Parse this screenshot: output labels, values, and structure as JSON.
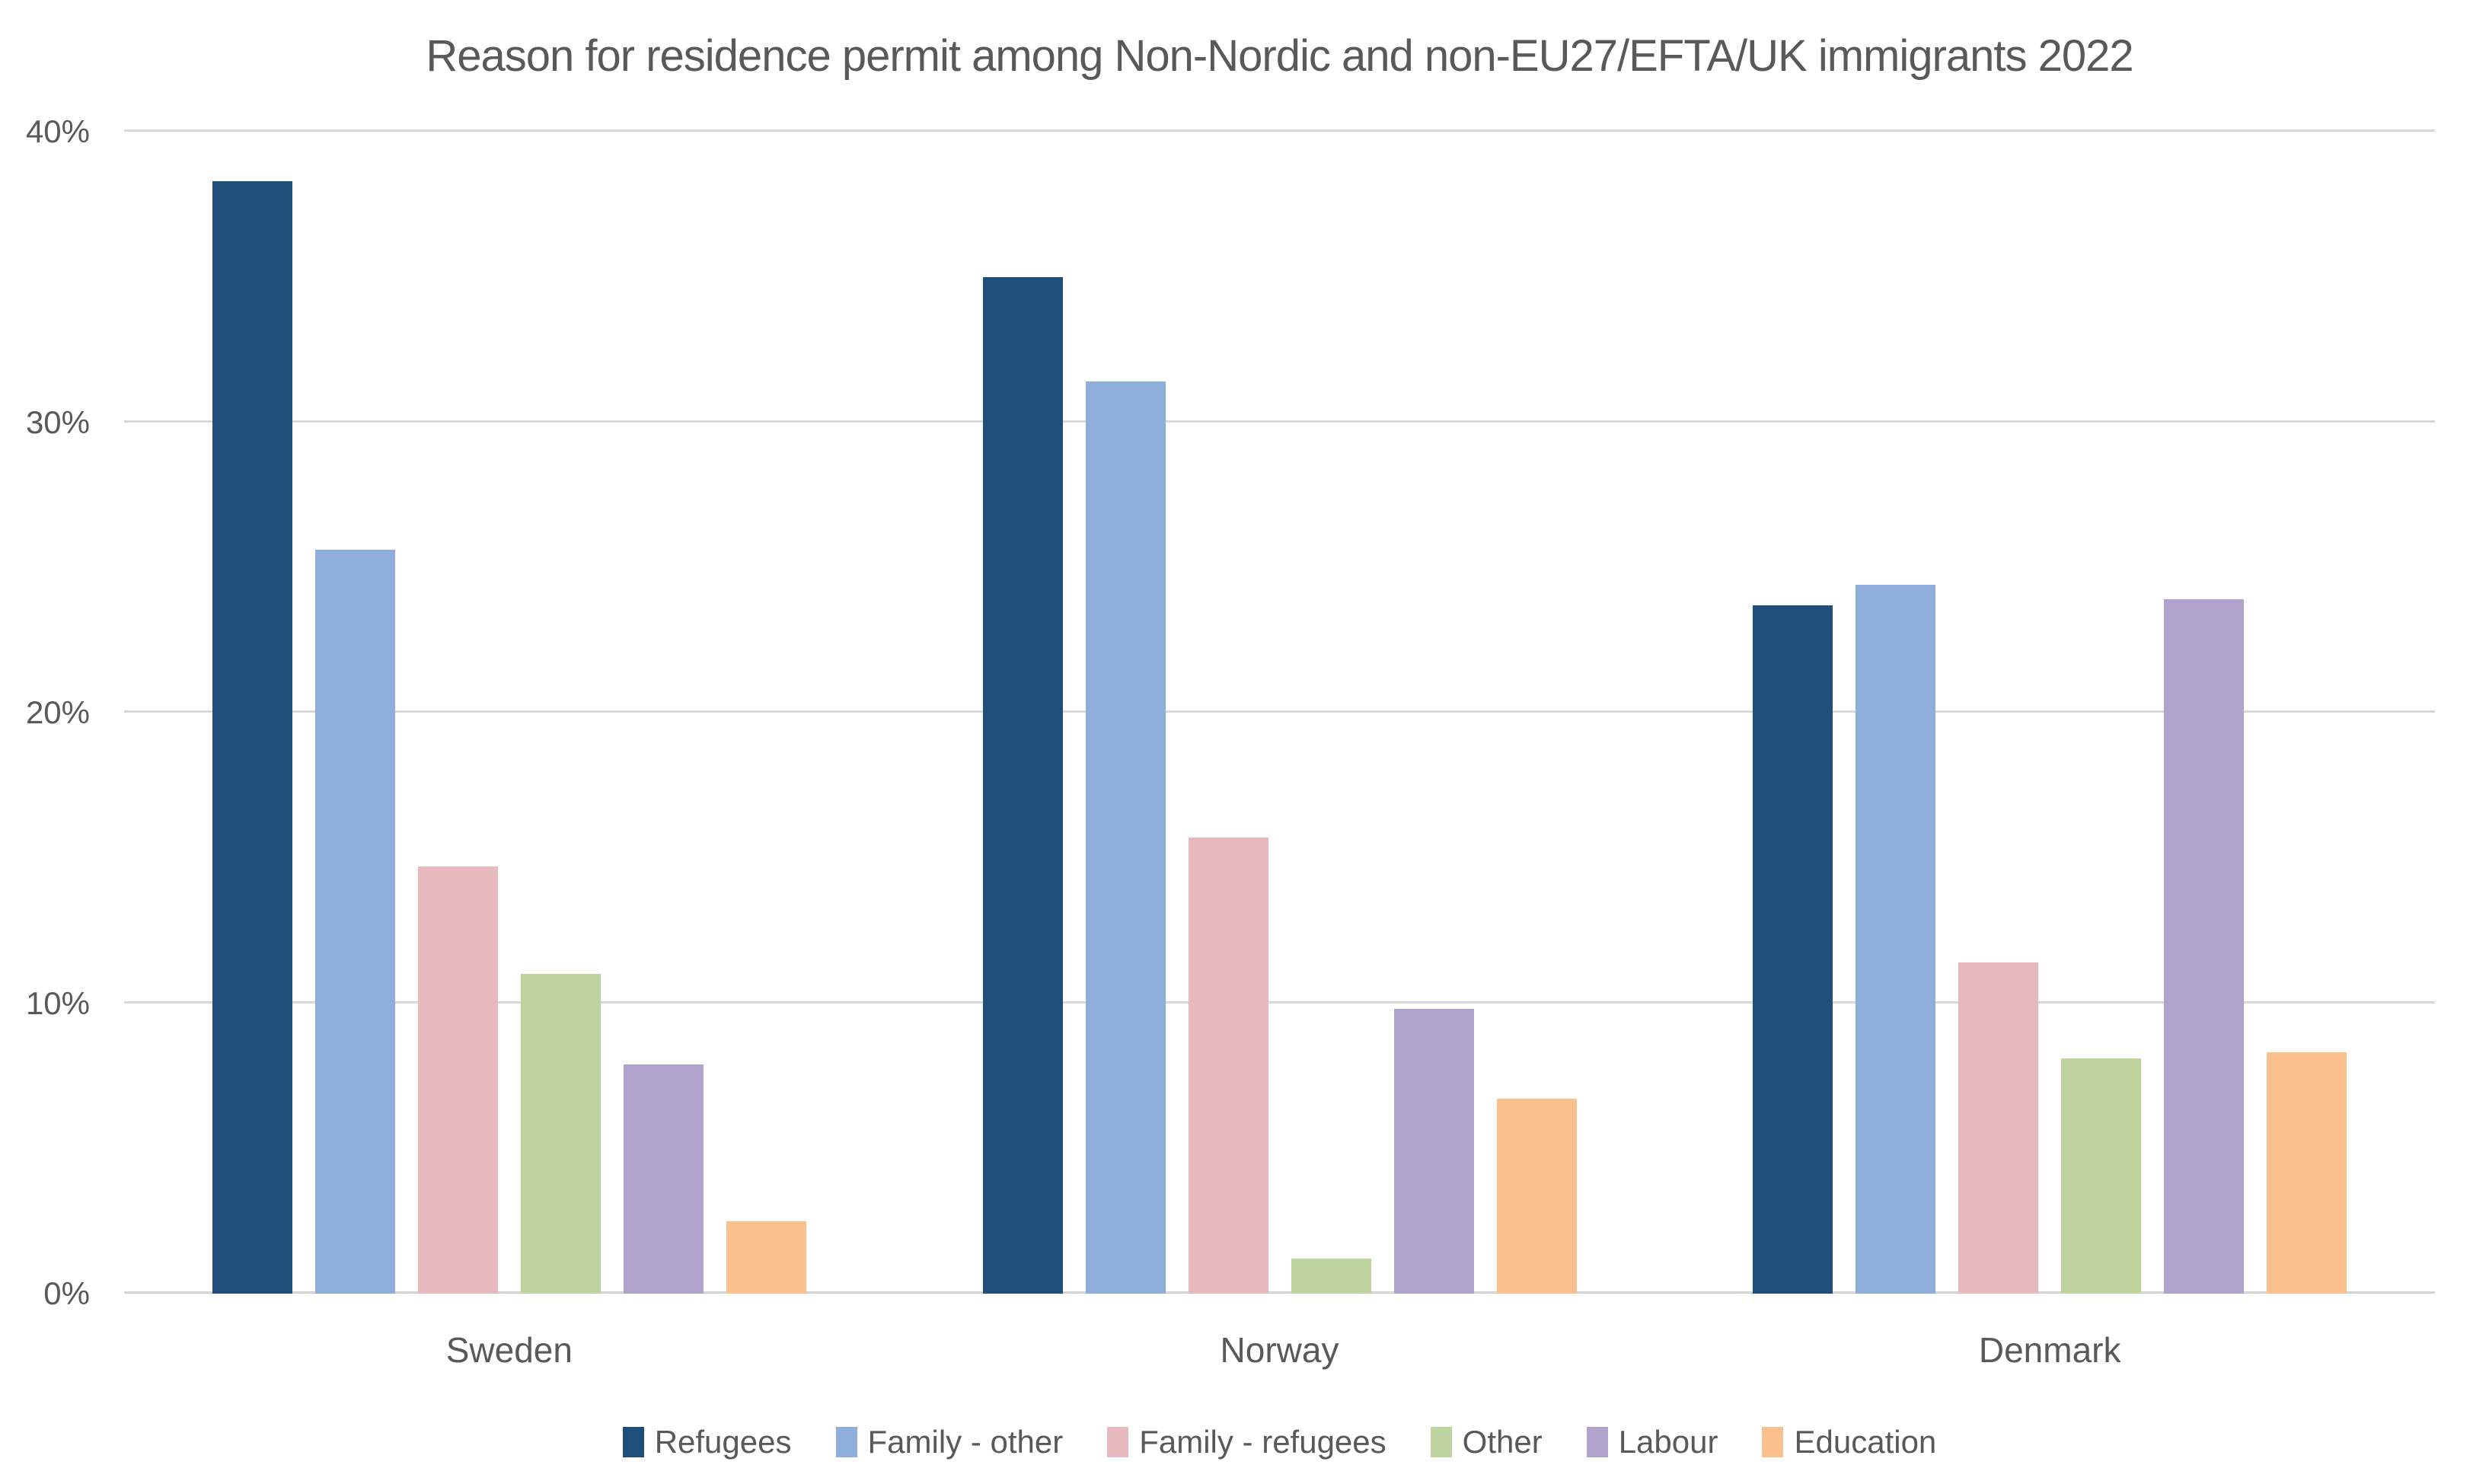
{
  "title": "Reason for residence permit among Non-Nordic and non-EU27/EFTA/UK immigrants 2022",
  "colors": {
    "text": "#595959",
    "gridline": "#D9D9D9",
    "background": "#FFFFFF"
  },
  "chart_data": {
    "type": "bar",
    "title": "Reason for residence permit among Non-Nordic and non-EU27/EFTA/UK immigrants 2022",
    "categories": [
      "Sweden",
      "Norway",
      "Denmark"
    ],
    "series": [
      {
        "name": "Refugees",
        "color": "#1F4E7B",
        "values": [
          38.3,
          35.0,
          23.7
        ]
      },
      {
        "name": "Family - other",
        "color": "#8FAEDB",
        "values": [
          25.6,
          31.4,
          24.4
        ]
      },
      {
        "name": "Family - refugees",
        "color": "#E6B9BD",
        "values": [
          14.7,
          15.7,
          11.4
        ]
      },
      {
        "name": "Other",
        "color": "#BDD49E",
        "values": [
          11.0,
          1.2,
          8.1
        ]
      },
      {
        "name": "Labour",
        "color": "#B1A2CC",
        "values": [
          7.9,
          9.8,
          23.9
        ]
      },
      {
        "name": "Education",
        "color": "#FAC18E",
        "values": [
          2.5,
          6.7,
          8.3
        ]
      }
    ],
    "xlabel": "",
    "ylabel": "",
    "y_axis": {
      "min": 0,
      "max": 40,
      "tick_step": 10,
      "ticks": [
        0,
        10,
        20,
        30,
        40
      ],
      "tick_labels": [
        "0%",
        "10%",
        "20%",
        "30%",
        "40%"
      ],
      "grid": true
    },
    "legend_position": "bottom"
  }
}
